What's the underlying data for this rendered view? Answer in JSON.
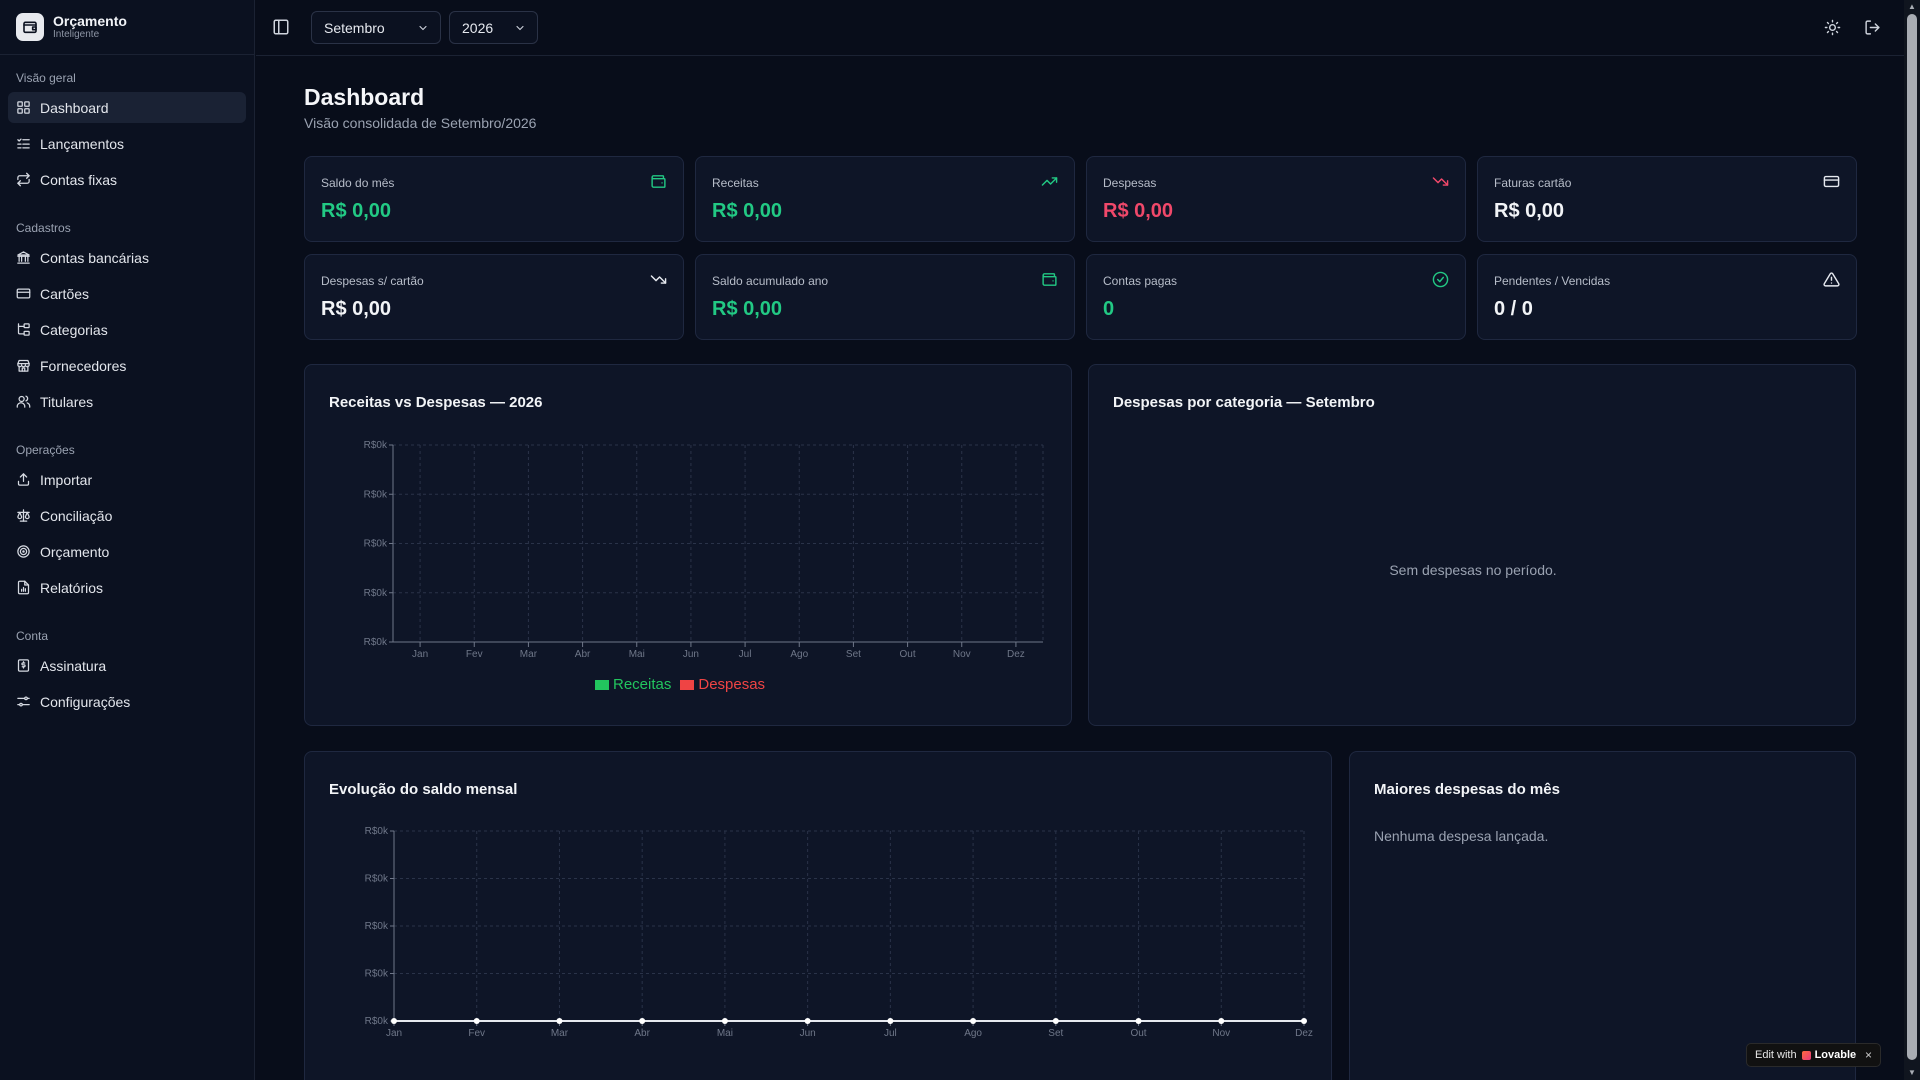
{
  "app": {
    "title": "Orçamento",
    "subtitle": "Inteligente"
  },
  "sidebar": {
    "groups": [
      {
        "title": "Visão geral",
        "items": [
          {
            "label": "Dashboard",
            "icon": "grid-icon",
            "active": true
          },
          {
            "label": "Lançamentos",
            "icon": "list-check-icon"
          },
          {
            "label": "Contas fixas",
            "icon": "repeat-icon"
          }
        ]
      },
      {
        "title": "Cadastros",
        "items": [
          {
            "label": "Contas bancárias",
            "icon": "bank-icon"
          },
          {
            "label": "Cartões",
            "icon": "credit-card-icon"
          },
          {
            "label": "Categorias",
            "icon": "folder-tree-icon"
          },
          {
            "label": "Fornecedores",
            "icon": "store-icon"
          },
          {
            "label": "Titulares",
            "icon": "users-icon"
          }
        ]
      },
      {
        "title": "Operações",
        "items": [
          {
            "label": "Importar",
            "icon": "upload-icon"
          },
          {
            "label": "Conciliação",
            "icon": "scale-icon"
          },
          {
            "label": "Orçamento",
            "icon": "target-icon"
          },
          {
            "label": "Relatórios",
            "icon": "file-chart-icon"
          }
        ]
      },
      {
        "title": "Conta",
        "items": [
          {
            "label": "Assinatura",
            "icon": "receipt-icon"
          },
          {
            "label": "Configurações",
            "icon": "sliders-icon"
          }
        ]
      }
    ]
  },
  "topbar": {
    "month_select": "Setembro",
    "year_select": "2026"
  },
  "page": {
    "title": "Dashboard",
    "subtitle": "Visão consolidada de Setembro/2026"
  },
  "stats": [
    {
      "label": "Saldo do mês",
      "value": "R$ 0,00",
      "color": "#22c984",
      "icon": "wallet-icon"
    },
    {
      "label": "Receitas",
      "value": "R$ 0,00",
      "color": "#22c984",
      "icon": "trending-up-icon"
    },
    {
      "label": "Despesas",
      "value": "R$ 0,00",
      "color": "#f0486a",
      "icon": "trending-down-icon"
    },
    {
      "label": "Faturas cartão",
      "value": "R$ 0,00",
      "color": "#f2f4f7",
      "icon": "credit-card-icon"
    },
    {
      "label": "Despesas s/ cartão",
      "value": "R$ 0,00",
      "color": "#f2f4f7",
      "icon": "trending-down-icon"
    },
    {
      "label": "Saldo acumulado ano",
      "value": "R$ 0,00",
      "color": "#22c984",
      "icon": "wallet-icon"
    },
    {
      "label": "Contas pagas",
      "value": "0",
      "color": "#22c984",
      "icon": "check-circle-icon"
    },
    {
      "label": "Pendentes / Vencidas",
      "value": "0 / 0",
      "color": "#f2f4f7",
      "icon": "alert-triangle-icon"
    }
  ],
  "panels": {
    "income_vs_expense_title": "Receitas vs Despesas — 2026",
    "category_title": "Despesas por categoria — Setembro",
    "category_empty": "Sem despesas no período.",
    "balance_title": "Evolução do saldo mensal",
    "top_expenses_title": "Maiores despesas do mês",
    "top_expenses_empty": "Nenhuma despesa lançada."
  },
  "chart_data": [
    {
      "type": "bar",
      "title": "Receitas vs Despesas — 2026",
      "categories": [
        "Jan",
        "Fev",
        "Mar",
        "Abr",
        "Mai",
        "Jun",
        "Jul",
        "Ago",
        "Set",
        "Out",
        "Nov",
        "Dez"
      ],
      "y_tick_labels": [
        "R$0k",
        "R$0k",
        "R$0k",
        "R$0k",
        "R$0k"
      ],
      "grid": true,
      "legend": "bottom",
      "series": [
        {
          "name": "Receitas",
          "color": "#22c55e",
          "values": [
            0,
            0,
            0,
            0,
            0,
            0,
            0,
            0,
            0,
            0,
            0,
            0
          ]
        },
        {
          "name": "Despesas",
          "color": "#ef4444",
          "values": [
            0,
            0,
            0,
            0,
            0,
            0,
            0,
            0,
            0,
            0,
            0,
            0
          ]
        }
      ]
    },
    {
      "type": "line",
      "title": "Evolução do saldo mensal",
      "categories": [
        "Jan",
        "Fev",
        "Mar",
        "Abr",
        "Mai",
        "Jun",
        "Jul",
        "Ago",
        "Set",
        "Out",
        "Nov",
        "Dez"
      ],
      "y_tick_labels": [
        "R$0k",
        "R$0k",
        "R$0k",
        "R$0k",
        "R$0k"
      ],
      "grid": true,
      "series": [
        {
          "values": [
            0,
            0,
            0,
            0,
            0,
            0,
            0,
            0,
            0,
            0,
            0,
            0
          ]
        }
      ]
    }
  ],
  "badge": {
    "prefix": "Edit with",
    "brand": "Lovable",
    "close": "×"
  }
}
